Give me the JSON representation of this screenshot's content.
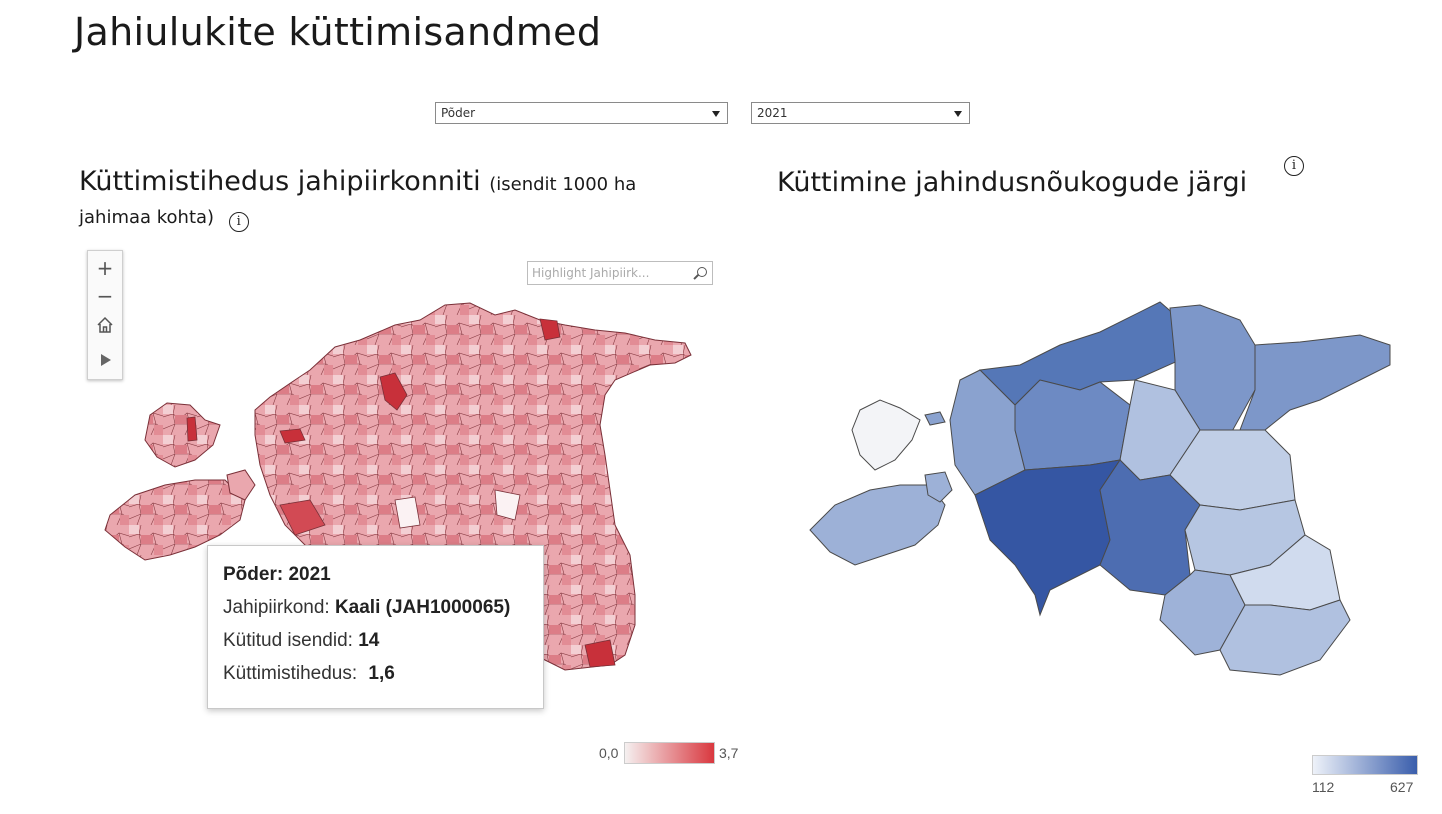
{
  "title": "Jahiulukite küttimisandmed",
  "filters": {
    "species": "Põder",
    "year": "2021"
  },
  "left_map": {
    "title_main": "Küttimistihedus jahipiirkonniti",
    "title_note_a": "(isendit 1000 ha",
    "title_note_b": "jahimaa kohta)",
    "info_icon": "i",
    "search_placeholder": "Highlight Jahipiirk...",
    "zoom_in": "+",
    "zoom_out": "−",
    "legend_min": "0,0",
    "legend_max": "3,7",
    "color_low": "#f5f0f0",
    "color_high": "#d9383f"
  },
  "tooltip": {
    "line1_label": "Põder:",
    "line1_value": "2021",
    "line2_label": "Jahipiirkond:",
    "line2_value": "Kaali (JAH1000065)",
    "line3_label": "Kütitud isendid:",
    "line3_value": "14",
    "line4_label": "Küttimistihedus:",
    "line4_value": "1,6"
  },
  "right_map": {
    "title": "Küttimine jahindusnõukogude järgi",
    "info_icon": "i",
    "legend_min": "112",
    "legend_max": "627",
    "color_low": "#eef2f9",
    "color_high": "#3a5eac"
  }
}
